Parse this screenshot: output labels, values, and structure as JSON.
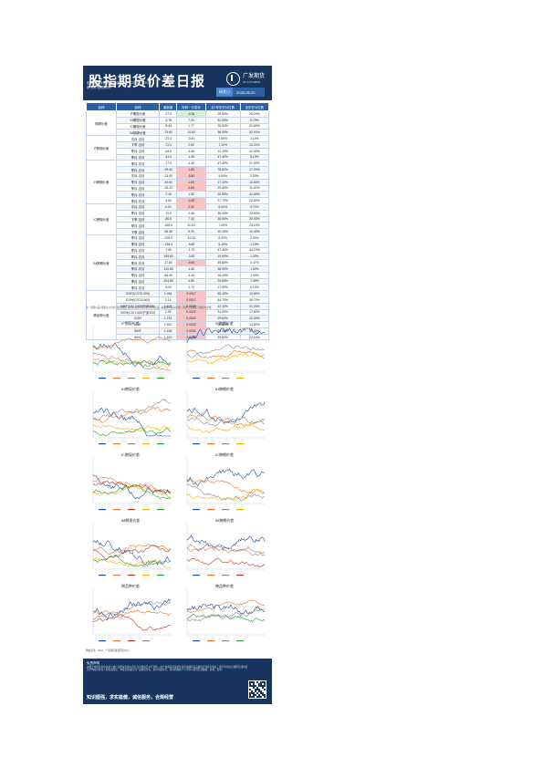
{
  "report": {
    "title": "股指期货价差日报",
    "logo_text": "广发期货",
    "logo_sub": "GF FUTURES",
    "meta_lines": [
      "投资咨询业务资格：证监许可【2011】1292号",
      "研究员/投资顾问"
    ],
    "date_label": "研发日",
    "date_value": "2025-05-20"
  },
  "table": {
    "headers": [
      "品种",
      "品种",
      "最新值",
      "较前一日变化",
      "近1年历史分位数",
      "全历史分位数"
    ],
    "groups": [
      {
        "category": "期现价差",
        "rows": [
          {
            "name": "IF期现价差",
            "latest": "-27.0",
            "chg": "-0.36",
            "pct1y": "29.50%",
            "pctall": "25.20%",
            "flag": "pos"
          },
          {
            "name": "IH期现价差",
            "latest": "-3.75",
            "chg": "7.20",
            "pct1y": "52.50%",
            "pctall": "9.70%",
            "flag": ""
          },
          {
            "name": "IC期现价差",
            "latest": "-5.44",
            "chg": "1.77",
            "pct1y": "75.90%",
            "pctall": "52.60%",
            "flag": ""
          },
          {
            "name": "IM期现价差",
            "latest": "-75.60",
            "chg": "10.60",
            "pct1y": "36.00%",
            "pctall": "32.00%",
            "flag": ""
          }
        ]
      },
      {
        "category": "IF跨期价差",
        "rows": [
          {
            "name": "次月-当月",
            "latest": "-27.4",
            "chg": "-0.40",
            "pct1y": "7.50%",
            "pctall": "3.10%",
            "flag": ""
          },
          {
            "name": "下季-当月",
            "latest": "-72.0",
            "chg": "2.60",
            "pct1y": "7.20%",
            "pctall": "13.20%",
            "flag": ""
          },
          {
            "name": "季月-当月",
            "latest": "-63.6",
            "chg": "-1.60",
            "pct1y": "12.20%",
            "pctall": "12.30%",
            "flag": ""
          },
          {
            "name": "季月-次月",
            "latest": "-41.0",
            "chg": "-1.80",
            "pct1y": "47.40%",
            "pctall": "8.10%",
            "flag": ""
          }
        ]
      },
      {
        "category": "IH跨期价差",
        "rows": [
          {
            "name": "季月-次月",
            "latest": "-17.0",
            "chg": "-1.40",
            "pct1y": "47.40%",
            "pctall": "21.00%",
            "flag": ""
          },
          {
            "name": "季月-次月",
            "latest": "-29.40",
            "chg": "1.80",
            "pct1y": "78.80%",
            "pctall": "17.20%",
            "flag": "neg"
          },
          {
            "name": "次月-当月",
            "latest": "-23.00",
            "chg": "-5.40",
            "pct1y": "4.60%",
            "pctall": "2.20%",
            "flag": "neg"
          },
          {
            "name": "季月-当月",
            "latest": "-49.60",
            "chg": "1.60",
            "pct1y": "17.10%",
            "pctall": "10.60%",
            "flag": "neg"
          },
          {
            "name": "季月-当月",
            "latest": "-25.20",
            "chg": "5.80",
            "pct1y": "29.60%",
            "pctall": "11.40%",
            "flag": "neg"
          },
          {
            "name": "季月-次月",
            "latest": "-7.40",
            "chg": "1.00",
            "pct1y": "25.80%",
            "pctall": "41.60%",
            "flag": ""
          },
          {
            "name": "季月-次月",
            "latest": "-4.80",
            "chg": "-0.40",
            "pct1y": "27.70%",
            "pctall": "22.60%",
            "flag": "neg"
          }
        ]
      },
      {
        "category": "IC跨期价差",
        "rows": [
          {
            "name": "次月-当月",
            "latest": "0.00",
            "chg": "2.00",
            "pct1y": "6.00%",
            "pctall": "3.70%",
            "flag": "neg"
          },
          {
            "name": "季月-当月",
            "latest": "-70.0",
            "chg": "2.40",
            "pct1y": "35.40%",
            "pctall": "24.60%",
            "flag": ""
          },
          {
            "name": "下季-当月",
            "latest": "-80.0",
            "chg": "7.40",
            "pct1y": "46.60%",
            "pctall": "30.00%",
            "flag": ""
          },
          {
            "name": "季月-当月",
            "latest": "-155.0",
            "chg": "11.20",
            "pct1y": "7.00%",
            "pctall": "24.10%",
            "flag": ""
          },
          {
            "name": "下季-当月",
            "latest": "-96.40",
            "chg": "5.20",
            "pct1y": "10.20%",
            "pctall": "10.40%",
            "flag": ""
          }
        ]
      },
      {
        "category": "IM跨期价差",
        "rows": [
          {
            "name": "季月-当月",
            "latest": "-226.0",
            "chg": "-10.20",
            "pct1y": "8.20%",
            "pctall": "2.00%",
            "flag": ""
          },
          {
            "name": "季月-当月",
            "latest": "-136.4",
            "chg": "-5.60",
            "pct1y": "5.10%",
            "pctall": "1.10%",
            "flag": ""
          },
          {
            "name": "季月-次月",
            "latest": "-7.60",
            "chg": "-1.70",
            "pct1y": "47.30%",
            "pctall": "44.10%",
            "flag": ""
          },
          {
            "name": "季月-次月",
            "latest": "-185.60",
            "chg": "-3.60",
            "pct1y": "10.60%",
            "pctall": "1.30%",
            "flag": ""
          },
          {
            "name": "季月-次月",
            "latest": "-27.80",
            "chg": "-5.60",
            "pct1y": "49.80%",
            "pctall": "0.47%",
            "flag": "neg"
          },
          {
            "name": "季月-次月",
            "latest": "-110.80",
            "chg": "-1.80",
            "pct1y": "38.90%",
            "pctall": "1.60%",
            "flag": ""
          },
          {
            "name": "季月-当月",
            "latest": "-84.40",
            "chg": "-1.40",
            "pct1y": "16.40%",
            "pctall": "1.90%",
            "flag": ""
          },
          {
            "name": "季月-当月",
            "latest": "-104.80",
            "chg": "4.80",
            "pct1y": "25.80%",
            "pctall": "7.30%",
            "flag": ""
          },
          {
            "name": "季月-次月",
            "latest": "-5.00",
            "chg": "1.70",
            "pct1y": "17.00%",
            "pctall": "0.10%",
            "flag": ""
          }
        ]
      },
      {
        "category": "跨品种价差",
        "rows": [
          {
            "name": "IC/IF(IC/CSI 500)",
            "latest": "1.454",
            "chg": "0.0017",
            "pct1y": "55.10%",
            "pctall": "10.50%",
            "flag": "neg"
          },
          {
            "name": "IC/IH(IC/CSI 500)",
            "latest": "2.14",
            "chg": "0.0017",
            "pct1y": "44.70%",
            "pctall": "36.70%",
            "flag": "neg"
          },
          {
            "name": "IM/IF(CSI 1000/沪深300)",
            "latest": "1.609",
            "chg": "0.0020",
            "pct1y": "42.10%",
            "pctall": "21.20%",
            "flag": "neg"
          },
          {
            "name": "IM/IH(CSI 1000/沪深300)",
            "latest": "2.39",
            "chg": "0.0022",
            "pct1y": "31.60%",
            "pctall": "17.60%",
            "flag": "neg"
          },
          {
            "name": "IC/IH",
            "latest": "1.214",
            "chg": "0.0020",
            "pct1y": "29.60%",
            "pctall": "20.30%",
            "flag": "neg"
          },
          {
            "name": "IC/IF",
            "latest": "1.610",
            "chg": "0.0020",
            "pct1y": "29.80%",
            "pctall": "14.50%",
            "flag": "neg"
          },
          {
            "name": "IM/IF",
            "latest": "1.633",
            "chg": "0.0030",
            "pct1y": "29.40%",
            "pctall": "20.40%",
            "flag": "neg"
          },
          {
            "name": "IM/IC",
            "latest": "1.624",
            "chg": "0.0030",
            "pct1y": "29.80%",
            "pctall": "22.10%",
            "flag": "neg"
          }
        ]
      }
    ]
  },
  "notes": {
    "table_note": "注：期现价差=期货主力合约-现货指数；跨期价差为不同月份合约之差；跨品种价差为比值；历史分位数基于收盘价计算。",
    "chart_note": "数据来源：Wind，广发期货发展研究中心",
    "disclaimer_title": "免责声明",
    "disclaimer": "本报告中的信息均来源于被广发期货有限公司认为可靠的已公开资料，但广发期货对这些信息的准确性及完整性不作任何保证。报告中的信息或所表述的意见不构成对任何人的投资建议。本报告版权仅为广发期货所有，未经书面许可，任何机构和个人不得以任何形式翻版、复制、发布。",
    "slogan": "知识图强，求实稳健，诚信服务，合规经营"
  },
  "charts": [
    {
      "title": "IF期现价差",
      "series_colors": [
        "#1f4e9c",
        "#e6762b",
        "#8a8a8a",
        "#f0b400",
        "#2f9e44"
      ]
    },
    {
      "title": "IF跨期价差",
      "series_colors": [
        "#1f4e9c",
        "#e6762b",
        "#8a8a8a",
        "#f0b400"
      ]
    },
    {
      "title": "IH期现价差",
      "series_colors": [
        "#1f4e9c",
        "#e6762b",
        "#8a8a8a",
        "#f0b400",
        "#2f9e44"
      ]
    },
    {
      "title": "IH跨期价差",
      "series_colors": [
        "#1f4e9c",
        "#e6762b",
        "#8a8a8a",
        "#f0b400"
      ]
    },
    {
      "title": "IC期现价差",
      "series_colors": [
        "#1f4e9c",
        "#e6762b",
        "#c0392b",
        "#f0b400",
        "#2f9e44"
      ]
    },
    {
      "title": "IC跨期价差",
      "series_colors": [
        "#1f4e9c",
        "#e6762b",
        "#8a8a8a",
        "#f0b400"
      ]
    },
    {
      "title": "IM期现价差",
      "series_colors": [
        "#1f4e9c",
        "#e6762b",
        "#c0392b",
        "#f0b400",
        "#2f9e44"
      ]
    },
    {
      "title": "IM跨期价差",
      "series_colors": [
        "#1f4e9c",
        "#e6762b",
        "#8a8a8a",
        "#c0392b"
      ]
    },
    {
      "title": "跨品种价差",
      "series_colors": [
        "#1f4e9c",
        "#e6762b",
        "#c0392b",
        "#8a8a8a"
      ]
    },
    {
      "title": "跨品种价差",
      "series_colors": [
        "#1f4e9c",
        "#e6762b",
        "#8a8a8a",
        "#2f9e44"
      ]
    }
  ]
}
